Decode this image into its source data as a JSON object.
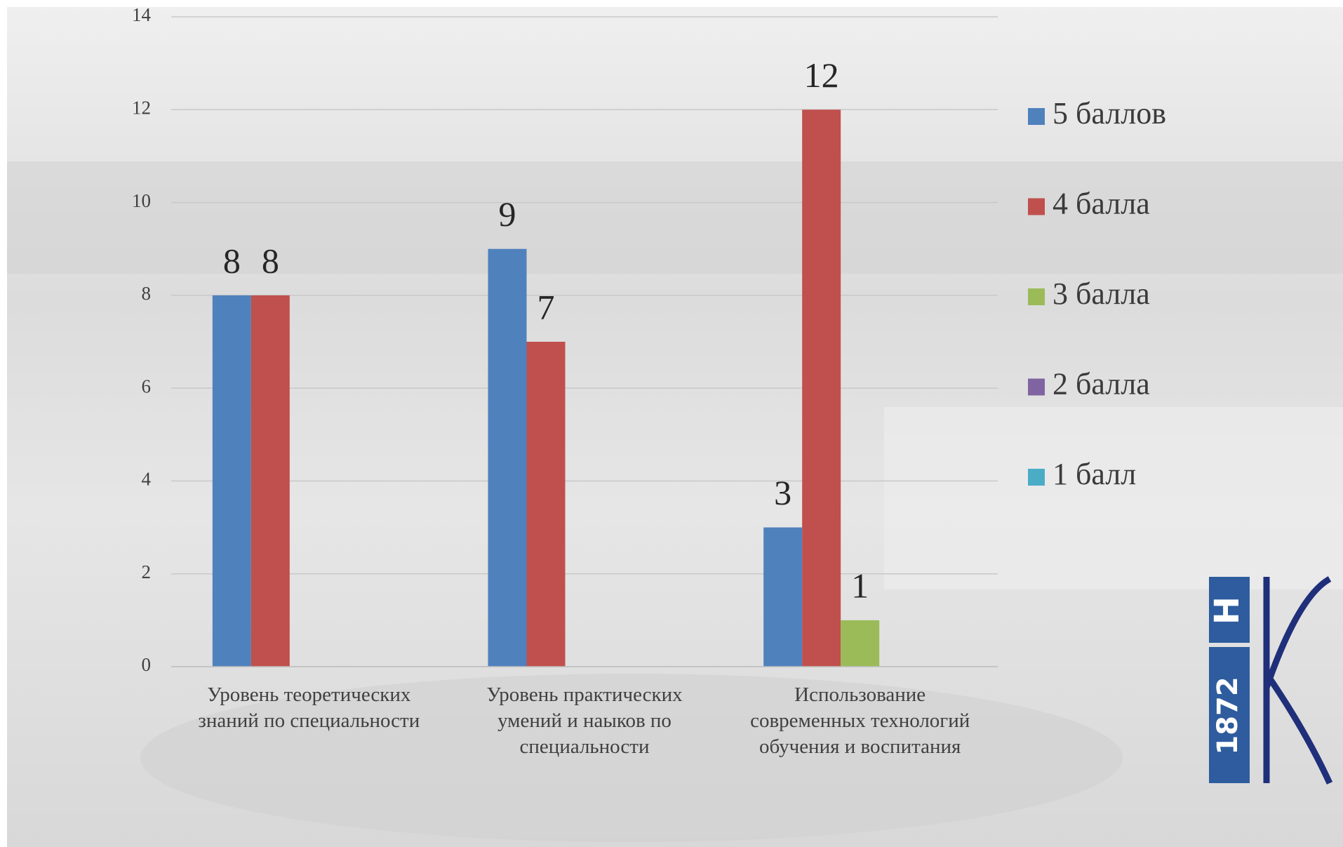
{
  "chart_data": {
    "type": "bar",
    "categories": [
      [
        "Уровень теоретических",
        "знаний по специальности"
      ],
      [
        "Уровень практических",
        "умений и наыков по",
        "специальности"
      ],
      [
        "Использование",
        "современных технологий",
        "обучения и воспитания"
      ]
    ],
    "series": [
      {
        "name": "5 баллов",
        "color": "#4f81bd",
        "values": [
          8,
          9,
          3
        ]
      },
      {
        "name": "4 балла",
        "color": "#c0504d",
        "values": [
          8,
          7,
          12
        ]
      },
      {
        "name": "3 балла",
        "color": "#9bbb59",
        "values": [
          null,
          null,
          1
        ]
      },
      {
        "name": "2 балла",
        "color": "#8064a2",
        "values": [
          null,
          null,
          null
        ]
      },
      {
        "name": "1 балл",
        "color": "#4bacc6",
        "values": [
          null,
          null,
          null
        ]
      }
    ],
    "ylim": [
      0,
      14
    ],
    "yticks": [
      0,
      2,
      4,
      6,
      8,
      10,
      12,
      14
    ],
    "grid": true,
    "legend": "right"
  },
  "logo": {
    "letter": "Н",
    "year": "1872"
  }
}
